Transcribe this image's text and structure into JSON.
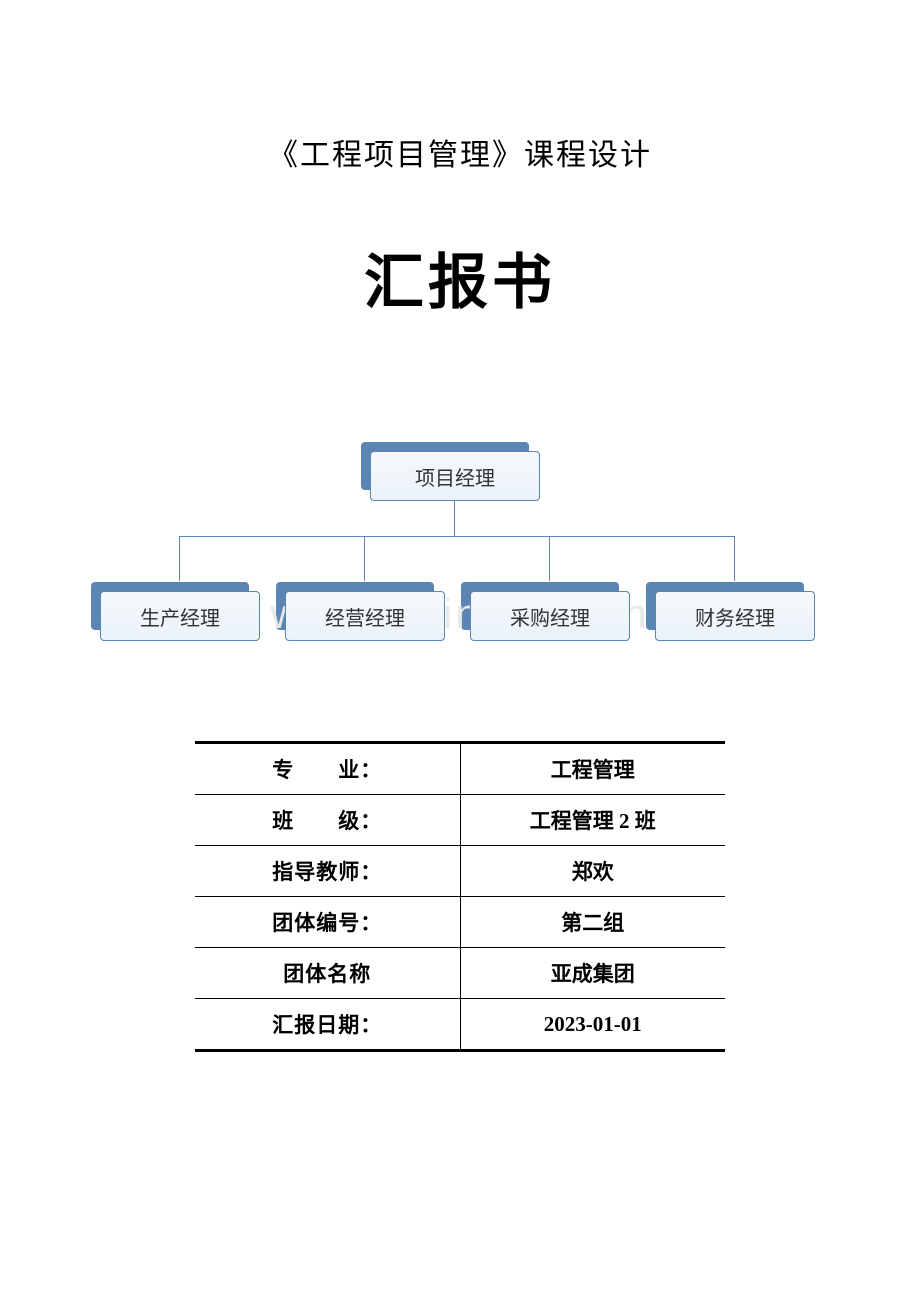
{
  "header": {
    "subtitle": "《工程项目管理》课程设计",
    "main_title": "汇报书"
  },
  "org_chart": {
    "type": "tree",
    "root": {
      "label": "项目经理"
    },
    "children": [
      {
        "label": "生产经理"
      },
      {
        "label": "经营经理"
      },
      {
        "label": "采购经理"
      },
      {
        "label": "财务经理"
      }
    ],
    "box_bg_gradient_top": "#f5f9fc",
    "box_bg_gradient_bottom": "#eaf2f9",
    "box_border_color": "#5b85b4",
    "box_shadow_color": "#5b85b4",
    "connector_color": "#5b85b4",
    "font_size": 20,
    "text_color": "#333333",
    "top_box_width": 170,
    "top_box_height": 50,
    "child_box_width": 160,
    "child_box_height": 50,
    "child_spacing": 185
  },
  "watermark": {
    "text": "www.zixin.com.cn",
    "color": "#e8e8e8",
    "font_size": 42
  },
  "info_table": {
    "type": "table",
    "border_color": "#000000",
    "outer_border_width": 3,
    "inner_border_width": 1,
    "font_size": 21,
    "font_weight": "bold",
    "rows": [
      {
        "label": "专　　业：",
        "value": "工程管理"
      },
      {
        "label": "班　　级：",
        "value": "工程管理 2 班"
      },
      {
        "label": "指导教师：",
        "value": "郑欢"
      },
      {
        "label": "团体编号：",
        "value": "第二组"
      },
      {
        "label": "团体名称",
        "value": "亚成集团"
      },
      {
        "label": "汇报日期：",
        "value": "2023-01-01"
      }
    ]
  }
}
